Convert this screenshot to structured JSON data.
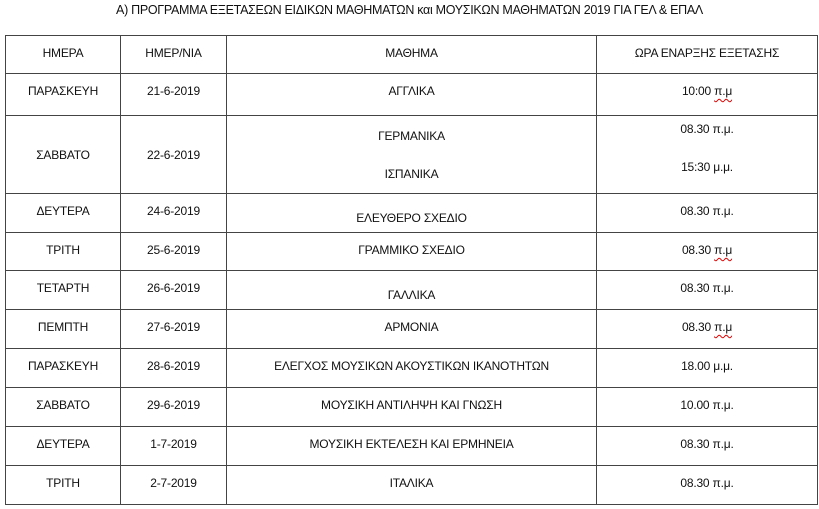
{
  "title": "Α) ΠΡΟΓΡΑΜΜΑ ΕΞΕΤΑΣΕΩΝ ΕΙΔΙΚΩΝ ΜΑΘΗΜΑΤΩΝ και ΜΟΥΣΙΚΩΝ ΜΑΘΗΜΑΤΩΝ 2019 ΓΙΑ ΓΕΛ & ΕΠΑΛ",
  "headers": [
    "ΗΜΕΡΑ",
    "ΗΜΕΡ/ΝΙΑ",
    "ΜΑΘΗΜΑ",
    "ΩΡΑ ΕΝΑΡΞΗΣ ΕΞΕΤΑΣΗΣ"
  ],
  "rows": [
    {
      "day": "ΠΑΡΑΣΚΕΥΗ",
      "date": "21-6-2019",
      "subject": "ΑΓΓΛΙΚΑ",
      "time_num": "10:00",
      "time_suffix": "π.μ"
    },
    {
      "day": "ΣΑΒΒΑΤΟ",
      "date": "22-6-2019",
      "subjects": [
        "ΓΕΡΜΑΝΙΚΑ",
        "ΙΣΠΑΝΙΚΑ"
      ],
      "times": [
        "08.30 π.μ.",
        "15:30 μ.μ."
      ]
    },
    {
      "day": "ΔΕΥΤΕΡΑ",
      "date": "24-6-2019",
      "subject": "ΕΛΕΥΘΕΡΟ ΣΧΕΔΙΟ",
      "time": "08.30 π.μ."
    },
    {
      "day": "ΤΡΙΤΗ",
      "date": "25-6-2019",
      "subject": "ΓΡΑΜΜΙΚΟ ΣΧΕΔΙΟ",
      "time_num": "08.30",
      "time_suffix": "π.μ"
    },
    {
      "day": "ΤΕΤΑΡΤΗ",
      "date": "26-6-2019",
      "subject": "ΓΑΛΛΙΚΑ",
      "time": "08.30 π.μ."
    },
    {
      "day": "ΠΕΜΠΤΗ",
      "date": "27-6-2019",
      "subject": "ΑΡΜΟΝΙΑ",
      "time_num": "08.30",
      "time_suffix": "π.μ"
    },
    {
      "day": "ΠΑΡΑΣΚΕΥΗ",
      "date": "28-6-2019",
      "subject": "ΕΛΕΓΧΟΣ ΜΟΥΣΙΚΩΝ ΑΚΟΥΣΤΙΚΩΝ ΙΚΑΝΟΤΗΤΩΝ",
      "time": "18.00 μ.μ."
    },
    {
      "day": "ΣΑΒΒΑΤΟ",
      "date": "29-6-2019",
      "subject": "ΜΟΥΣΙΚΗ ΑΝΤΙΛΗΨΗ ΚΑΙ ΓΝΩΣΗ",
      "time": "10.00 π.μ."
    },
    {
      "day": "ΔΕΥΤΕΡΑ",
      "date": "1-7-2019",
      "subject": "ΜΟΥΣΙΚΗ ΕΚΤΕΛΕΣΗ ΚΑΙ ΕΡΜΗΝΕΙΑ",
      "time": "08.30 π.μ."
    },
    {
      "day": "ΤΡΙΤΗ",
      "date": "2-7-2019",
      "subject": "ΙΤΑΛΙΚΑ",
      "time": "08.30 π.μ."
    }
  ]
}
